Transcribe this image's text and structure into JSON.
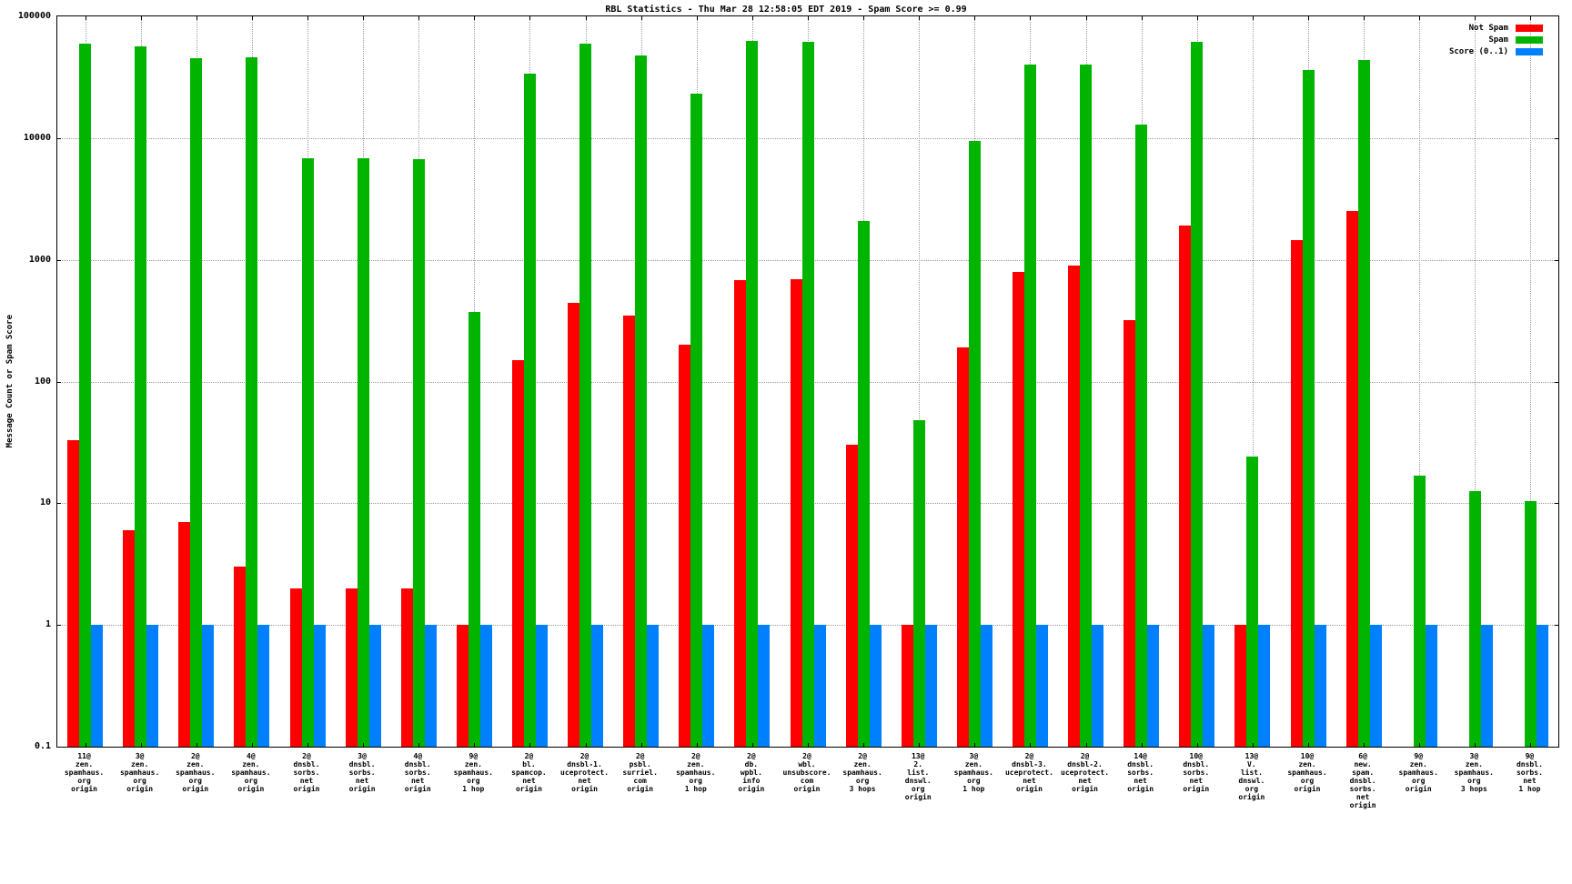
{
  "chart_data": {
    "type": "bar",
    "title": "RBL Statistics - Thu Mar 28 12:58:05 EDT 2019 - Spam Score >= 0.99",
    "ylabel": "Message Count or Spam Score",
    "xlabel": "",
    "y_scale": "log",
    "ylim": [
      0.1,
      100000
    ],
    "yticks": [
      "100000",
      "10000",
      "1000",
      "100",
      "10",
      "1",
      "0.1"
    ],
    "grid": true,
    "legend_position": "top-right",
    "series": [
      {
        "name": "Not Spam",
        "color": "#ff0000",
        "key": "not_spam"
      },
      {
        "name": "Spam",
        "color": "#00b400",
        "key": "spam"
      },
      {
        "name": "Score (0..1)",
        "color": "#0080ff",
        "key": "score"
      }
    ],
    "groups": [
      {
        "category": "11@ zen.spamhaus.org origin",
        "label_lines": [
          "11@",
          "zen.",
          "spamhaus.",
          "org",
          "origin"
        ],
        "values": [
          33,
          60000,
          1
        ]
      },
      {
        "category": "3@ zen.spamhaus.org origin",
        "label_lines": [
          "3@",
          "zen.",
          "spamhaus.",
          "org",
          "origin"
        ],
        "values": [
          6,
          57000,
          1
        ]
      },
      {
        "category": "2@ zen.spamhaus.org origin",
        "label_lines": [
          "2@",
          "zen.",
          "spamhaus.",
          "org",
          "origin"
        ],
        "values": [
          7,
          45000,
          1
        ]
      },
      {
        "category": "4@ zen.spamhaus.org origin",
        "label_lines": [
          "4@",
          "zen.",
          "spamhaus.",
          "org",
          "origin"
        ],
        "values": [
          3,
          46000,
          1
        ]
      },
      {
        "category": "2@ dnsbl.sorbs.net origin",
        "label_lines": [
          "2@",
          "dnsbl.",
          "sorbs.",
          "net",
          "origin"
        ],
        "values": [
          2,
          6800,
          1
        ]
      },
      {
        "category": "3@ dnsbl.sorbs.net origin",
        "label_lines": [
          "3@",
          "dnsbl.",
          "sorbs.",
          "net",
          "origin"
        ],
        "values": [
          2,
          6800,
          1
        ]
      },
      {
        "category": "4@ dnsbl.sorbs.net origin",
        "label_lines": [
          "4@",
          "dnsbl.",
          "sorbs.",
          "net",
          "origin"
        ],
        "values": [
          2,
          6700,
          1
        ]
      },
      {
        "category": "9@ zen.spamhaus.org 1 hop",
        "label_lines": [
          "9@",
          "zen.",
          "spamhaus.",
          "org",
          "1 hop"
        ],
        "values": [
          1,
          370,
          1
        ]
      },
      {
        "category": "2@ bl.spamcop.net origin",
        "label_lines": [
          "2@",
          "bl.",
          "spamcop.",
          "net",
          "origin"
        ],
        "values": [
          150,
          34000,
          1
        ]
      },
      {
        "category": "2@ dnsbl-1.uceprotect.net origin",
        "label_lines": [
          "2@",
          "dnsbl-1.",
          "uceprotect.",
          "net",
          "origin"
        ],
        "values": [
          440,
          60000,
          1
        ]
      },
      {
        "category": "2@ psbl.surriel.com origin",
        "label_lines": [
          "2@",
          "psbl.",
          "surriel.",
          "com",
          "origin"
        ],
        "values": [
          350,
          48000,
          1
        ]
      },
      {
        "category": "2@ zen.spamhaus.org 1 hop",
        "label_lines": [
          "2@",
          "zen.",
          "spamhaus.",
          "org",
          "1 hop"
        ],
        "values": [
          200,
          23000,
          1
        ]
      },
      {
        "category": "2@ db.wpbl.info origin",
        "label_lines": [
          "2@",
          "db.",
          "wpbl.",
          "info",
          "origin"
        ],
        "values": [
          680,
          63000,
          1
        ]
      },
      {
        "category": "2@ wbl.unsubscore.com origin",
        "label_lines": [
          "2@",
          "wbl.",
          "unsubscore.",
          "com",
          "origin"
        ],
        "values": [
          690,
          62000,
          1
        ]
      },
      {
        "category": "2@ zen.spamhaus.org 3 hops",
        "label_lines": [
          "2@",
          "zen.",
          "spamhaus.",
          "org",
          "3 hops"
        ],
        "values": [
          30,
          2100,
          1
        ]
      },
      {
        "category": "13@ 2.list.dnswl.org origin",
        "label_lines": [
          "13@",
          "2.",
          "list.",
          "dnswl.",
          "org",
          "origin"
        ],
        "values": [
          1,
          48,
          1
        ]
      },
      {
        "category": "3@ zen.spamhaus.org 1 hop",
        "label_lines": [
          "3@",
          "zen.",
          "spamhaus.",
          "org",
          "1 hop"
        ],
        "values": [
          190,
          9500,
          1
        ]
      },
      {
        "category": "2@ dnsbl-3.uceprotect.net origin",
        "label_lines": [
          "2@",
          "dnsbl-3.",
          "uceprotect.",
          "net",
          "origin"
        ],
        "values": [
          800,
          40000,
          1
        ]
      },
      {
        "category": "2@ dnsbl-2.uceprotect.net origin",
        "label_lines": [
          "2@",
          "dnsbl-2.",
          "uceprotect.",
          "net",
          "origin"
        ],
        "values": [
          900,
          40000,
          1
        ]
      },
      {
        "category": "14@ dnsbl.sorbs.net origin",
        "label_lines": [
          "14@",
          "dnsbl.",
          "sorbs.",
          "net",
          "origin"
        ],
        "values": [
          320,
          13000,
          1
        ]
      },
      {
        "category": "10@ dnsbl.sorbs.net origin",
        "label_lines": [
          "10@",
          "dnsbl.",
          "sorbs.",
          "net",
          "origin"
        ],
        "values": [
          1900,
          62000,
          1
        ]
      },
      {
        "category": "13@ V.list.dnswl.org origin",
        "label_lines": [
          "13@",
          "V.",
          "list.",
          "dnswl.",
          "org",
          "origin"
        ],
        "values": [
          1,
          24,
          1
        ]
      },
      {
        "category": "10@ zen.spamhaus.org origin",
        "label_lines": [
          "10@",
          "zen.",
          "spamhaus.",
          "org",
          "origin"
        ],
        "values": [
          1450,
          36000,
          1
        ]
      },
      {
        "category": "6@ new.spam.dnsbl.sorbs.net origin",
        "label_lines": [
          "6@",
          "new.",
          "spam.",
          "dnsbl.",
          "sorbs.",
          "net",
          "origin"
        ],
        "values": [
          2500,
          44000,
          1
        ]
      },
      {
        "category": "9@ zen.spamhaus.org origin",
        "label_lines": [
          "9@",
          "zen.",
          "spamhaus.",
          "org",
          "origin"
        ],
        "values": [
          null,
          17,
          1
        ]
      },
      {
        "category": "3@ zen.spamhaus.org 3 hops",
        "label_lines": [
          "3@",
          "zen.",
          "spamhaus.",
          "org",
          "3 hops"
        ],
        "values": [
          null,
          12.5,
          1
        ]
      },
      {
        "category": "9@ dnsbl.sorbs.net 1 hop",
        "label_lines": [
          "9@",
          "dnsbl.",
          "sorbs.",
          "net",
          "1 hop"
        ],
        "values": [
          null,
          10.5,
          1
        ]
      }
    ]
  }
}
